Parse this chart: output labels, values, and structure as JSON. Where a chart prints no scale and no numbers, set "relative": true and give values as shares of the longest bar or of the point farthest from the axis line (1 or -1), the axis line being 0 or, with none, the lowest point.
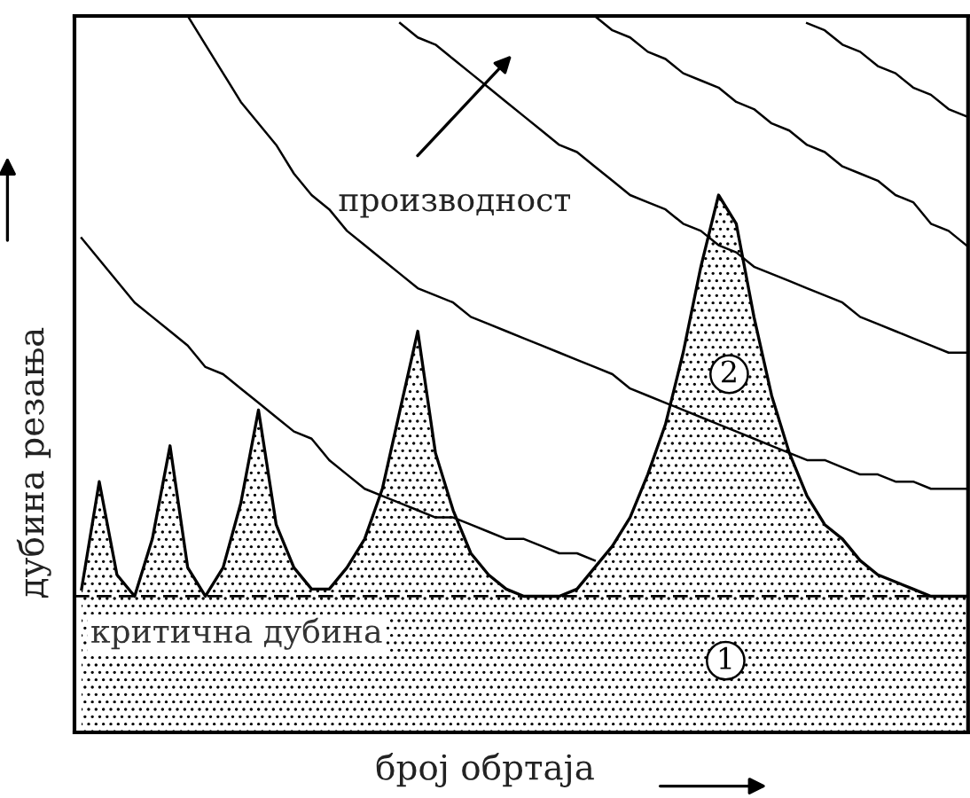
{
  "chart_data": {
    "type": "area",
    "relative": true,
    "xlabel": "број обртаја",
    "ylabel": "дубина резања",
    "categories": [
      null,
      null,
      null,
      null,
      null,
      null,
      null,
      null,
      null,
      null,
      null,
      null,
      null,
      null,
      null,
      null,
      null,
      null,
      null,
      null,
      null,
      null,
      null,
      null,
      null,
      null,
      null,
      null,
      null,
      null,
      null,
      null,
      null,
      null,
      null,
      null,
      null,
      null,
      null,
      null,
      null,
      null,
      null,
      null,
      null,
      null,
      null,
      null,
      null,
      null,
      null
    ],
    "series": [
      {
        "color": "#000000",
        "values": [
          0.2,
          0.35,
          0.22,
          0.19,
          0.27,
          0.4,
          0.23,
          0.19,
          0.23,
          0.32,
          0.45,
          0.29,
          0.23,
          0.2,
          0.2,
          0.23,
          0.27,
          0.34,
          0.45,
          0.56,
          0.39,
          0.31,
          0.25,
          0.22,
          0.2,
          0.19,
          0.19,
          0.19,
          0.2,
          0.23,
          0.26,
          0.3,
          0.36,
          0.43,
          0.53,
          0.65,
          0.75,
          0.71,
          0.58,
          0.47,
          0.39,
          0.33,
          0.29,
          0.27,
          0.24,
          0.22,
          0.21,
          0.2,
          0.19,
          0.19,
          0.19
        ]
      },
      {
        "type": "line",
        "color": "#000000",
        "values": [
          0.69,
          0.66,
          0.63,
          0.6,
          0.58,
          0.56,
          0.54,
          0.51,
          0.5,
          0.48,
          0.46,
          0.44,
          0.42,
          0.41,
          0.38,
          0.36,
          0.34,
          0.33,
          0.32,
          0.31,
          0.3,
          0.3,
          0.29,
          0.28,
          0.27,
          0.27,
          0.26,
          0.25,
          0.25,
          0.24,
          null,
          null,
          null,
          null,
          null,
          null,
          null,
          null,
          null,
          null,
          null,
          null,
          null,
          null,
          null,
          null,
          null,
          null,
          null,
          null,
          null
        ]
      },
      {
        "type": "line",
        "color": "#000000",
        "values": [
          null,
          null,
          null,
          null,
          null,
          null,
          1.0,
          0.96,
          0.92,
          0.88,
          0.85,
          0.82,
          0.78,
          0.75,
          0.73,
          0.7,
          0.68,
          0.66,
          0.64,
          0.62,
          0.61,
          0.6,
          0.58,
          0.57,
          0.56,
          0.55,
          0.54,
          0.53,
          0.52,
          0.51,
          0.5,
          0.48,
          0.47,
          0.46,
          0.45,
          0.44,
          0.43,
          0.42,
          0.41,
          0.4,
          0.39,
          0.38,
          0.38,
          0.37,
          0.36,
          0.36,
          0.35,
          0.35,
          0.34,
          0.34,
          0.34
        ]
      },
      {
        "type": "line",
        "color": "#000000",
        "values": [
          null,
          null,
          null,
          null,
          null,
          null,
          null,
          null,
          null,
          null,
          null,
          null,
          null,
          null,
          null,
          null,
          null,
          null,
          0.99,
          0.97,
          0.96,
          0.94,
          0.92,
          0.9,
          0.88,
          0.86,
          0.84,
          0.82,
          0.81,
          0.79,
          0.77,
          0.75,
          0.74,
          0.73,
          0.71,
          0.7,
          0.68,
          0.67,
          0.65,
          0.64,
          0.63,
          0.62,
          0.61,
          0.6,
          0.58,
          0.57,
          0.56,
          0.55,
          0.54,
          0.53,
          0.53
        ]
      },
      {
        "type": "line",
        "color": "#000000",
        "values": [
          null,
          null,
          null,
          null,
          null,
          null,
          null,
          null,
          null,
          null,
          null,
          null,
          null,
          null,
          null,
          null,
          null,
          null,
          null,
          null,
          null,
          null,
          null,
          null,
          null,
          null,
          null,
          null,
          null,
          1.0,
          0.98,
          0.97,
          0.95,
          0.94,
          0.92,
          0.91,
          0.9,
          0.88,
          0.87,
          0.85,
          0.84,
          0.82,
          0.81,
          0.79,
          0.78,
          0.77,
          0.75,
          0.74,
          0.71,
          0.7,
          0.68
        ]
      },
      {
        "type": "line",
        "color": "#000000",
        "values": [
          null,
          null,
          null,
          null,
          null,
          null,
          null,
          null,
          null,
          null,
          null,
          null,
          null,
          null,
          null,
          null,
          null,
          null,
          null,
          null,
          null,
          null,
          null,
          null,
          null,
          null,
          null,
          null,
          null,
          null,
          null,
          null,
          null,
          null,
          null,
          null,
          null,
          null,
          null,
          null,
          null,
          0.99,
          0.98,
          0.96,
          0.95,
          0.93,
          0.92,
          0.9,
          0.89,
          0.87,
          0.86
        ]
      }
    ],
    "ref_lines": [
      {
        "axis": "y",
        "value": 0.19,
        "label": "критична дубина",
        "color": "#000000",
        "line_style": "dashed"
      }
    ],
    "annotations": [
      "производност",
      "1",
      "2"
    ],
    "legend": false
  }
}
